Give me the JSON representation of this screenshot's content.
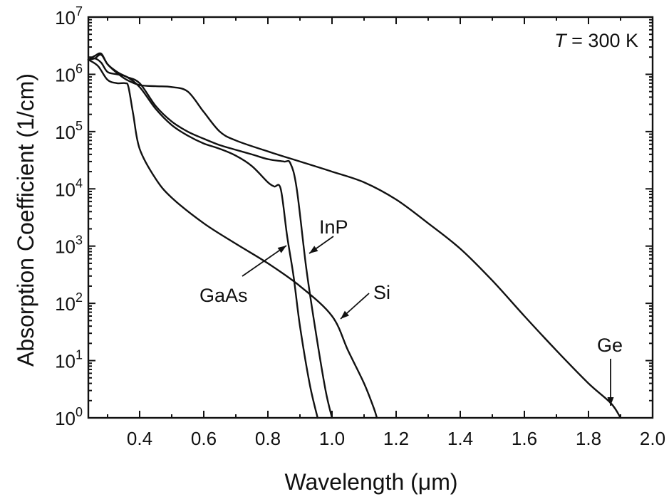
{
  "chart_data": {
    "type": "line",
    "title": "",
    "xlabel": "Wavelength (μm)",
    "ylabel": "Absorption Coefficient (1/cm)",
    "x_scale": "linear",
    "y_scale": "log",
    "xlim": [
      0.24,
      2.0
    ],
    "ylim": [
      1,
      10000000
    ],
    "grid": false,
    "x_ticks": [
      0.4,
      0.6,
      0.8,
      1.0,
      1.2,
      1.4,
      1.6,
      1.8,
      2.0
    ],
    "x_tick_labels": [
      "0.4",
      "0.6",
      "0.8",
      "1.0",
      "1.2",
      "1.4",
      "1.6",
      "1.8",
      "2.0"
    ],
    "y_ticks": [
      1,
      10,
      100,
      1000,
      10000,
      100000,
      1000000,
      10000000
    ],
    "y_tick_labels": [
      {
        "base": "10",
        "exp": "0"
      },
      {
        "base": "10",
        "exp": "1"
      },
      {
        "base": "10",
        "exp": "2"
      },
      {
        "base": "10",
        "exp": "3"
      },
      {
        "base": "10",
        "exp": "4"
      },
      {
        "base": "10",
        "exp": "5"
      },
      {
        "base": "10",
        "exp": "6"
      },
      {
        "base": "10",
        "exp": "7"
      }
    ],
    "temperature_note": {
      "symbol": "T",
      "text": " = 300 K"
    },
    "series": [
      {
        "name": "Ge",
        "x": [
          0.24,
          0.26,
          0.28,
          0.3,
          0.33,
          0.36,
          0.4,
          0.45,
          0.5,
          0.55,
          0.6,
          0.65,
          0.7,
          0.8,
          0.9,
          1.0,
          1.1,
          1.2,
          1.3,
          1.4,
          1.5,
          1.6,
          1.7,
          1.8,
          1.87,
          1.9
        ],
        "y": [
          1800000,
          1900000,
          2200000,
          1500000,
          1050000,
          800000,
          650000,
          620000,
          600000,
          500000,
          220000,
          100000,
          70000,
          45000,
          30000,
          20000,
          13000,
          6500,
          2500,
          900,
          250,
          60,
          15,
          4,
          1.8,
          1
        ]
      },
      {
        "name": "InP",
        "x": [
          0.24,
          0.26,
          0.28,
          0.3,
          0.33,
          0.36,
          0.4,
          0.45,
          0.5,
          0.55,
          0.6,
          0.65,
          0.7,
          0.75,
          0.8,
          0.85,
          0.87,
          0.89,
          0.92,
          0.95,
          0.98,
          1.0
        ],
        "y": [
          1800000,
          2100000,
          2300000,
          1500000,
          1100000,
          900000,
          700000,
          280000,
          150000,
          100000,
          75000,
          58000,
          48000,
          40000,
          33000,
          30000,
          28000,
          10000,
          400,
          30,
          3,
          1
        ]
      },
      {
        "name": "GaAs",
        "x": [
          0.24,
          0.26,
          0.28,
          0.3,
          0.33,
          0.36,
          0.4,
          0.45,
          0.5,
          0.55,
          0.6,
          0.65,
          0.7,
          0.75,
          0.8,
          0.82,
          0.84,
          0.86,
          0.88,
          0.9,
          0.93,
          0.955
        ],
        "y": [
          1800000,
          1900000,
          1600000,
          1100000,
          1000000,
          900000,
          600000,
          250000,
          130000,
          85000,
          62000,
          50000,
          38000,
          25000,
          13000,
          11000,
          10000,
          1500,
          300,
          40,
          4,
          1
        ]
      },
      {
        "name": "Si",
        "x": [
          0.24,
          0.27,
          0.3,
          0.33,
          0.355,
          0.365,
          0.38,
          0.4,
          0.45,
          0.5,
          0.6,
          0.7,
          0.8,
          0.9,
          1.0,
          1.05,
          1.1,
          1.13,
          1.14
        ],
        "y": [
          1800000,
          1400000,
          800000,
          700000,
          700000,
          600000,
          200000,
          50000,
          15000,
          7000,
          2500,
          1100,
          500,
          200,
          60,
          15,
          4,
          1.5,
          1
        ]
      }
    ],
    "annotations": [
      {
        "text": "InP",
        "series": "InP"
      },
      {
        "text": "GaAs",
        "series": "GaAs"
      },
      {
        "text": "Si",
        "series": "Si"
      },
      {
        "text": "Ge",
        "series": "Ge"
      }
    ]
  }
}
